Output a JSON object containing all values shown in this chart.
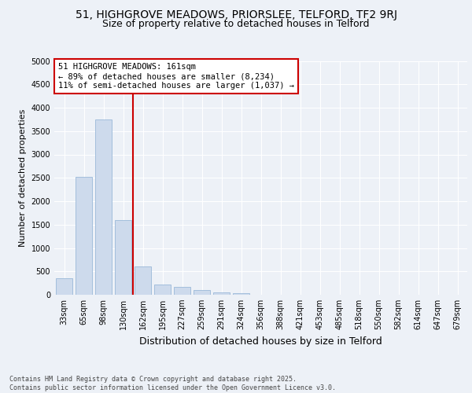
{
  "title": "51, HIGHGROVE MEADOWS, PRIORSLEE, TELFORD, TF2 9RJ",
  "subtitle": "Size of property relative to detached houses in Telford",
  "xlabel": "Distribution of detached houses by size in Telford",
  "ylabel": "Number of detached properties",
  "categories": [
    "33sqm",
    "65sqm",
    "98sqm",
    "130sqm",
    "162sqm",
    "195sqm",
    "227sqm",
    "259sqm",
    "291sqm",
    "324sqm",
    "356sqm",
    "388sqm",
    "421sqm",
    "453sqm",
    "485sqm",
    "518sqm",
    "550sqm",
    "582sqm",
    "614sqm",
    "647sqm",
    "679sqm"
  ],
  "values": [
    350,
    2520,
    3750,
    1600,
    600,
    220,
    170,
    100,
    50,
    40,
    0,
    0,
    0,
    0,
    0,
    0,
    0,
    0,
    0,
    0,
    0
  ],
  "bar_color": "#cddaec",
  "bar_edge_color": "#9ab8d8",
  "vline_color": "#cc0000",
  "annotation_text": "51 HIGHGROVE MEADOWS: 161sqm\n← 89% of detached houses are smaller (8,234)\n11% of semi-detached houses are larger (1,037) →",
  "annotation_box_facecolor": "#ffffff",
  "annotation_box_edgecolor": "#cc0000",
  "ylim": [
    0,
    5000
  ],
  "yticks": [
    0,
    500,
    1000,
    1500,
    2000,
    2500,
    3000,
    3500,
    4000,
    4500,
    5000
  ],
  "title_fontsize": 10,
  "subtitle_fontsize": 9,
  "axis_label_fontsize": 8,
  "tick_fontsize": 7,
  "footer_text": "Contains HM Land Registry data © Crown copyright and database right 2025.\nContains public sector information licensed under the Open Government Licence v3.0.",
  "background_color": "#edf1f7",
  "grid_color": "#ffffff"
}
